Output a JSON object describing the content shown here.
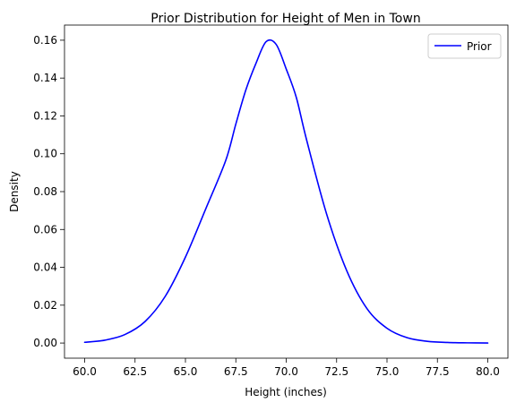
{
  "chart_data": {
    "type": "line",
    "title": "Prior Distribution for Height of Men in Town",
    "xlabel": "Height (inches)",
    "ylabel": "Density",
    "xlim": [
      59.0,
      81.0
    ],
    "ylim": [
      -0.008,
      0.168
    ],
    "grid": false,
    "legend_position": "top-right",
    "x_ticks": [
      60.0,
      62.5,
      65.0,
      67.5,
      70.0,
      72.5,
      75.0,
      77.5,
      80.0
    ],
    "x_tick_labels": [
      "60.0",
      "62.5",
      "65.0",
      "67.5",
      "70.0",
      "72.5",
      "75.0",
      "77.5",
      "80.0"
    ],
    "y_ticks": [
      0.0,
      0.02,
      0.04,
      0.06,
      0.08,
      0.1,
      0.12,
      0.14,
      0.16
    ],
    "y_tick_labels": [
      "0.00",
      "0.02",
      "0.04",
      "0.06",
      "0.08",
      "0.10",
      "0.12",
      "0.14",
      "0.16"
    ],
    "series": [
      {
        "name": "Prior",
        "color": "#0000ff",
        "x": [
          60.0,
          61.0,
          62.0,
          63.0,
          64.0,
          65.0,
          66.0,
          67.0,
          67.5,
          68.0,
          68.5,
          69.0,
          69.5,
          70.0,
          70.5,
          71.0,
          72.0,
          73.0,
          74.0,
          75.0,
          76.0,
          77.0,
          78.0,
          79.0,
          80.0
        ],
        "y": [
          0.0004,
          0.0015,
          0.0045,
          0.0114,
          0.0247,
          0.0454,
          0.0707,
          0.0965,
          0.1157,
          0.1338,
          0.1478,
          0.1592,
          0.1578,
          0.1448,
          0.1298,
          0.1078,
          0.0683,
          0.0383,
          0.0183,
          0.0078,
          0.0028,
          0.0009,
          0.0003,
          0.0001,
          0.0
        ]
      }
    ]
  }
}
